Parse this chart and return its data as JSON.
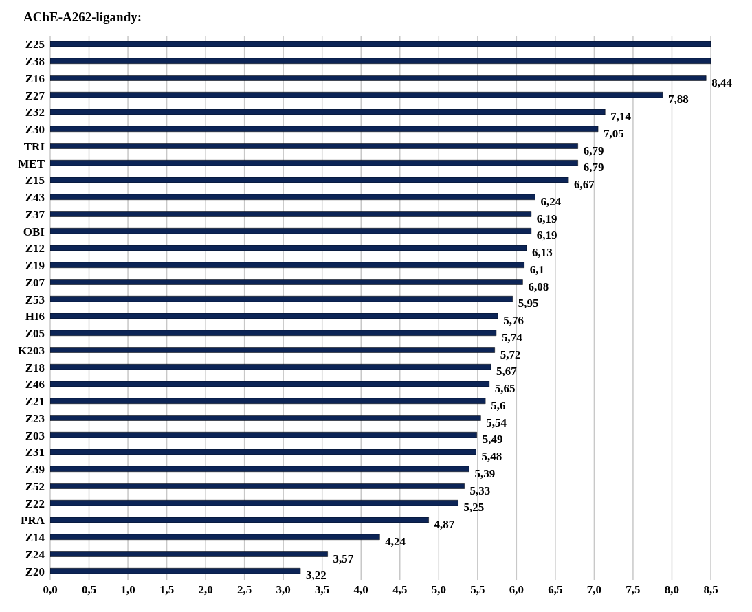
{
  "chart_data": {
    "type": "bar",
    "orientation": "horizontal",
    "title": "AChE-A262-ligandy:",
    "categories": [
      "Z25",
      "Z38",
      "Z16",
      "Z27",
      "Z32",
      "Z30",
      "TRI",
      "MET",
      "Z15",
      "Z43",
      "Z37",
      "OBI",
      "Z12",
      "Z19",
      "Z07",
      "Z53",
      "HI6",
      "Z05",
      "K203",
      "Z18",
      "Z46",
      "Z21",
      "Z23",
      "Z03",
      "Z31",
      "Z39",
      "Z52",
      "Z22",
      "PRA",
      "Z14",
      "Z24",
      "Z20"
    ],
    "values": [
      8.5,
      8.5,
      8.44,
      7.88,
      7.14,
      7.05,
      6.79,
      6.79,
      6.67,
      6.24,
      6.19,
      6.19,
      6.13,
      6.1,
      6.08,
      5.95,
      5.76,
      5.74,
      5.72,
      5.67,
      5.65,
      5.6,
      5.54,
      5.49,
      5.48,
      5.39,
      5.33,
      5.25,
      4.87,
      4.24,
      3.57,
      3.22
    ],
    "value_labels": [
      null,
      null,
      "8,44",
      "7,88",
      "7,14",
      "7,05",
      "6,79",
      "6,79",
      "6,67",
      "6,24",
      "6,19",
      "6,19",
      "6,13",
      "6,1",
      "6,08",
      "5,95",
      "5,76",
      "5,74",
      "5,72",
      "5,67",
      "5,65",
      "5,6",
      "5,54",
      "5,49",
      "5,48",
      "5,39",
      "5,33",
      "5,25",
      "4,87",
      "4,24",
      "3,57",
      "3,22"
    ],
    "color": "#0c2456",
    "xlim": [
      0,
      8.5
    ],
    "xticks": [
      {
        "value": 0,
        "label": "0,0"
      },
      {
        "value": 0.5,
        "label": "0,5"
      },
      {
        "value": 1,
        "label": "1,0"
      },
      {
        "value": 1.5,
        "label": "1,5"
      },
      {
        "value": 2,
        "label": "2,0"
      },
      {
        "value": 2.5,
        "label": "2,5"
      },
      {
        "value": 3,
        "label": "3,0"
      },
      {
        "value": 3.5,
        "label": "3,5"
      },
      {
        "value": 4,
        "label": "4,0"
      },
      {
        "value": 4.5,
        "label": "4,5"
      },
      {
        "value": 5,
        "label": "5,0"
      },
      {
        "value": 5.5,
        "label": "5,5"
      },
      {
        "value": 6,
        "label": "6,0"
      },
      {
        "value": 6.5,
        "label": "6,5"
      },
      {
        "value": 7,
        "label": "7,0"
      },
      {
        "value": 7.5,
        "label": "7,5"
      },
      {
        "value": 8,
        "label": "8,0"
      },
      {
        "value": 8.5,
        "label": "8,5"
      }
    ],
    "grid": "x"
  }
}
